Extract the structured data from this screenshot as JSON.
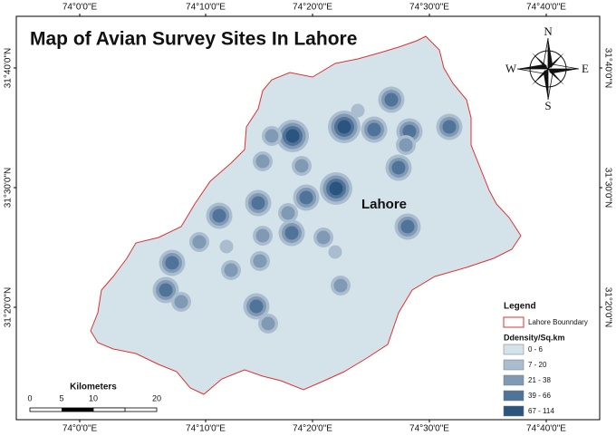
{
  "title": "Map of Avian Survey Sites In Lahore",
  "longitude_labels": [
    "74°0'0\"E",
    "74°10'0\"E",
    "74°20'0\"E",
    "74°30'0\"E",
    "74°40'0\"E"
  ],
  "latitude_labels": [
    "31°40'0\"N",
    "31°30'0\"N",
    "31°20'0\"N"
  ],
  "compass": {
    "n": "N",
    "e": "E",
    "s": "S",
    "w": "W"
  },
  "place_label": "Lahore",
  "legend": {
    "title": "Legend",
    "boundary": "Lahore Bounndary",
    "density_title": "Ddensity/Sq.km",
    "classes": [
      "0 - 6",
      "7 - 20",
      "21 - 38",
      "39 - 66",
      "67 - 114"
    ]
  },
  "scale_bar": {
    "title": "Kilometers",
    "ticks": [
      "0",
      "5",
      "10",
      "20"
    ]
  }
}
